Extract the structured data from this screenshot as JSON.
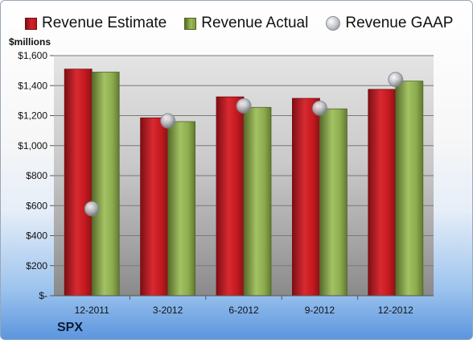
{
  "legend": {
    "estimate_label": "Revenue Estimate",
    "actual_label": "Revenue Actual",
    "gaap_label": "Revenue GAAP"
  },
  "unit_label": "$millions",
  "company_label": "SPX",
  "colors": {
    "estimate": "#c0151d",
    "actual": "#8cac4f",
    "gaap": "#bfc3c8"
  },
  "chart_data": {
    "type": "bar",
    "title": "",
    "xlabel": "",
    "ylabel": "$millions",
    "categories": [
      "12-2011",
      "3-2012",
      "6-2012",
      "9-2012",
      "12-2012"
    ],
    "series": [
      {
        "name": "Revenue Estimate",
        "type": "bar",
        "values": [
          1510,
          1185,
          1325,
          1315,
          1375
        ]
      },
      {
        "name": "Revenue Actual",
        "type": "bar",
        "values": [
          1490,
          1160,
          1255,
          1245,
          1430
        ]
      },
      {
        "name": "Revenue GAAP",
        "type": "scatter",
        "values": [
          580,
          1165,
          1265,
          1250,
          1440
        ]
      }
    ],
    "ylim": [
      0,
      1600
    ],
    "yticks": [
      0,
      200,
      400,
      600,
      800,
      1000,
      1200,
      1400,
      1600
    ],
    "ytick_labels": [
      "$-",
      "$200",
      "$400",
      "$600",
      "$800",
      "$1,000",
      "$1,200",
      "$1,400",
      "$1,600"
    ],
    "grid": true,
    "legend_position": "top"
  }
}
